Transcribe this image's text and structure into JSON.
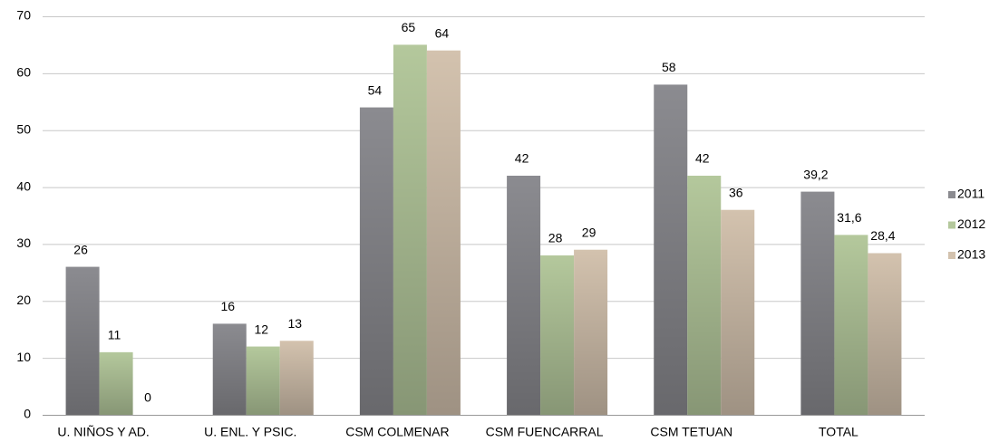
{
  "chart_data": {
    "type": "bar",
    "categories": [
      "U. NIÑOS Y AD.",
      "U. ENL. Y PSIC.",
      "CSM COLMENAR",
      "CSM FUENCARRAL",
      "CSM TETUAN",
      "TOTAL"
    ],
    "series": [
      {
        "name": "2011",
        "color": "#8b8b90",
        "values": [
          26,
          16,
          54,
          42,
          58,
          39.2
        ],
        "value_labels": [
          "26",
          "16",
          "54",
          "42",
          "58",
          "39,2"
        ]
      },
      {
        "name": "2012",
        "color": "#b4c89c",
        "values": [
          11,
          12,
          65,
          28,
          42,
          31.6
        ],
        "value_labels": [
          "11",
          "12",
          "65",
          "28",
          "42",
          "31,6"
        ]
      },
      {
        "name": "2013",
        "color": "#d3c2ae",
        "values": [
          0,
          13,
          64,
          29,
          36,
          28.4
        ],
        "value_labels": [
          "0",
          "13",
          "64",
          "29",
          "36",
          "28,4"
        ]
      }
    ],
    "ylim": [
      0,
      70
    ],
    "yticks": [
      0,
      10,
      20,
      30,
      40,
      50,
      60,
      70
    ],
    "grid": true,
    "legend": "right"
  }
}
